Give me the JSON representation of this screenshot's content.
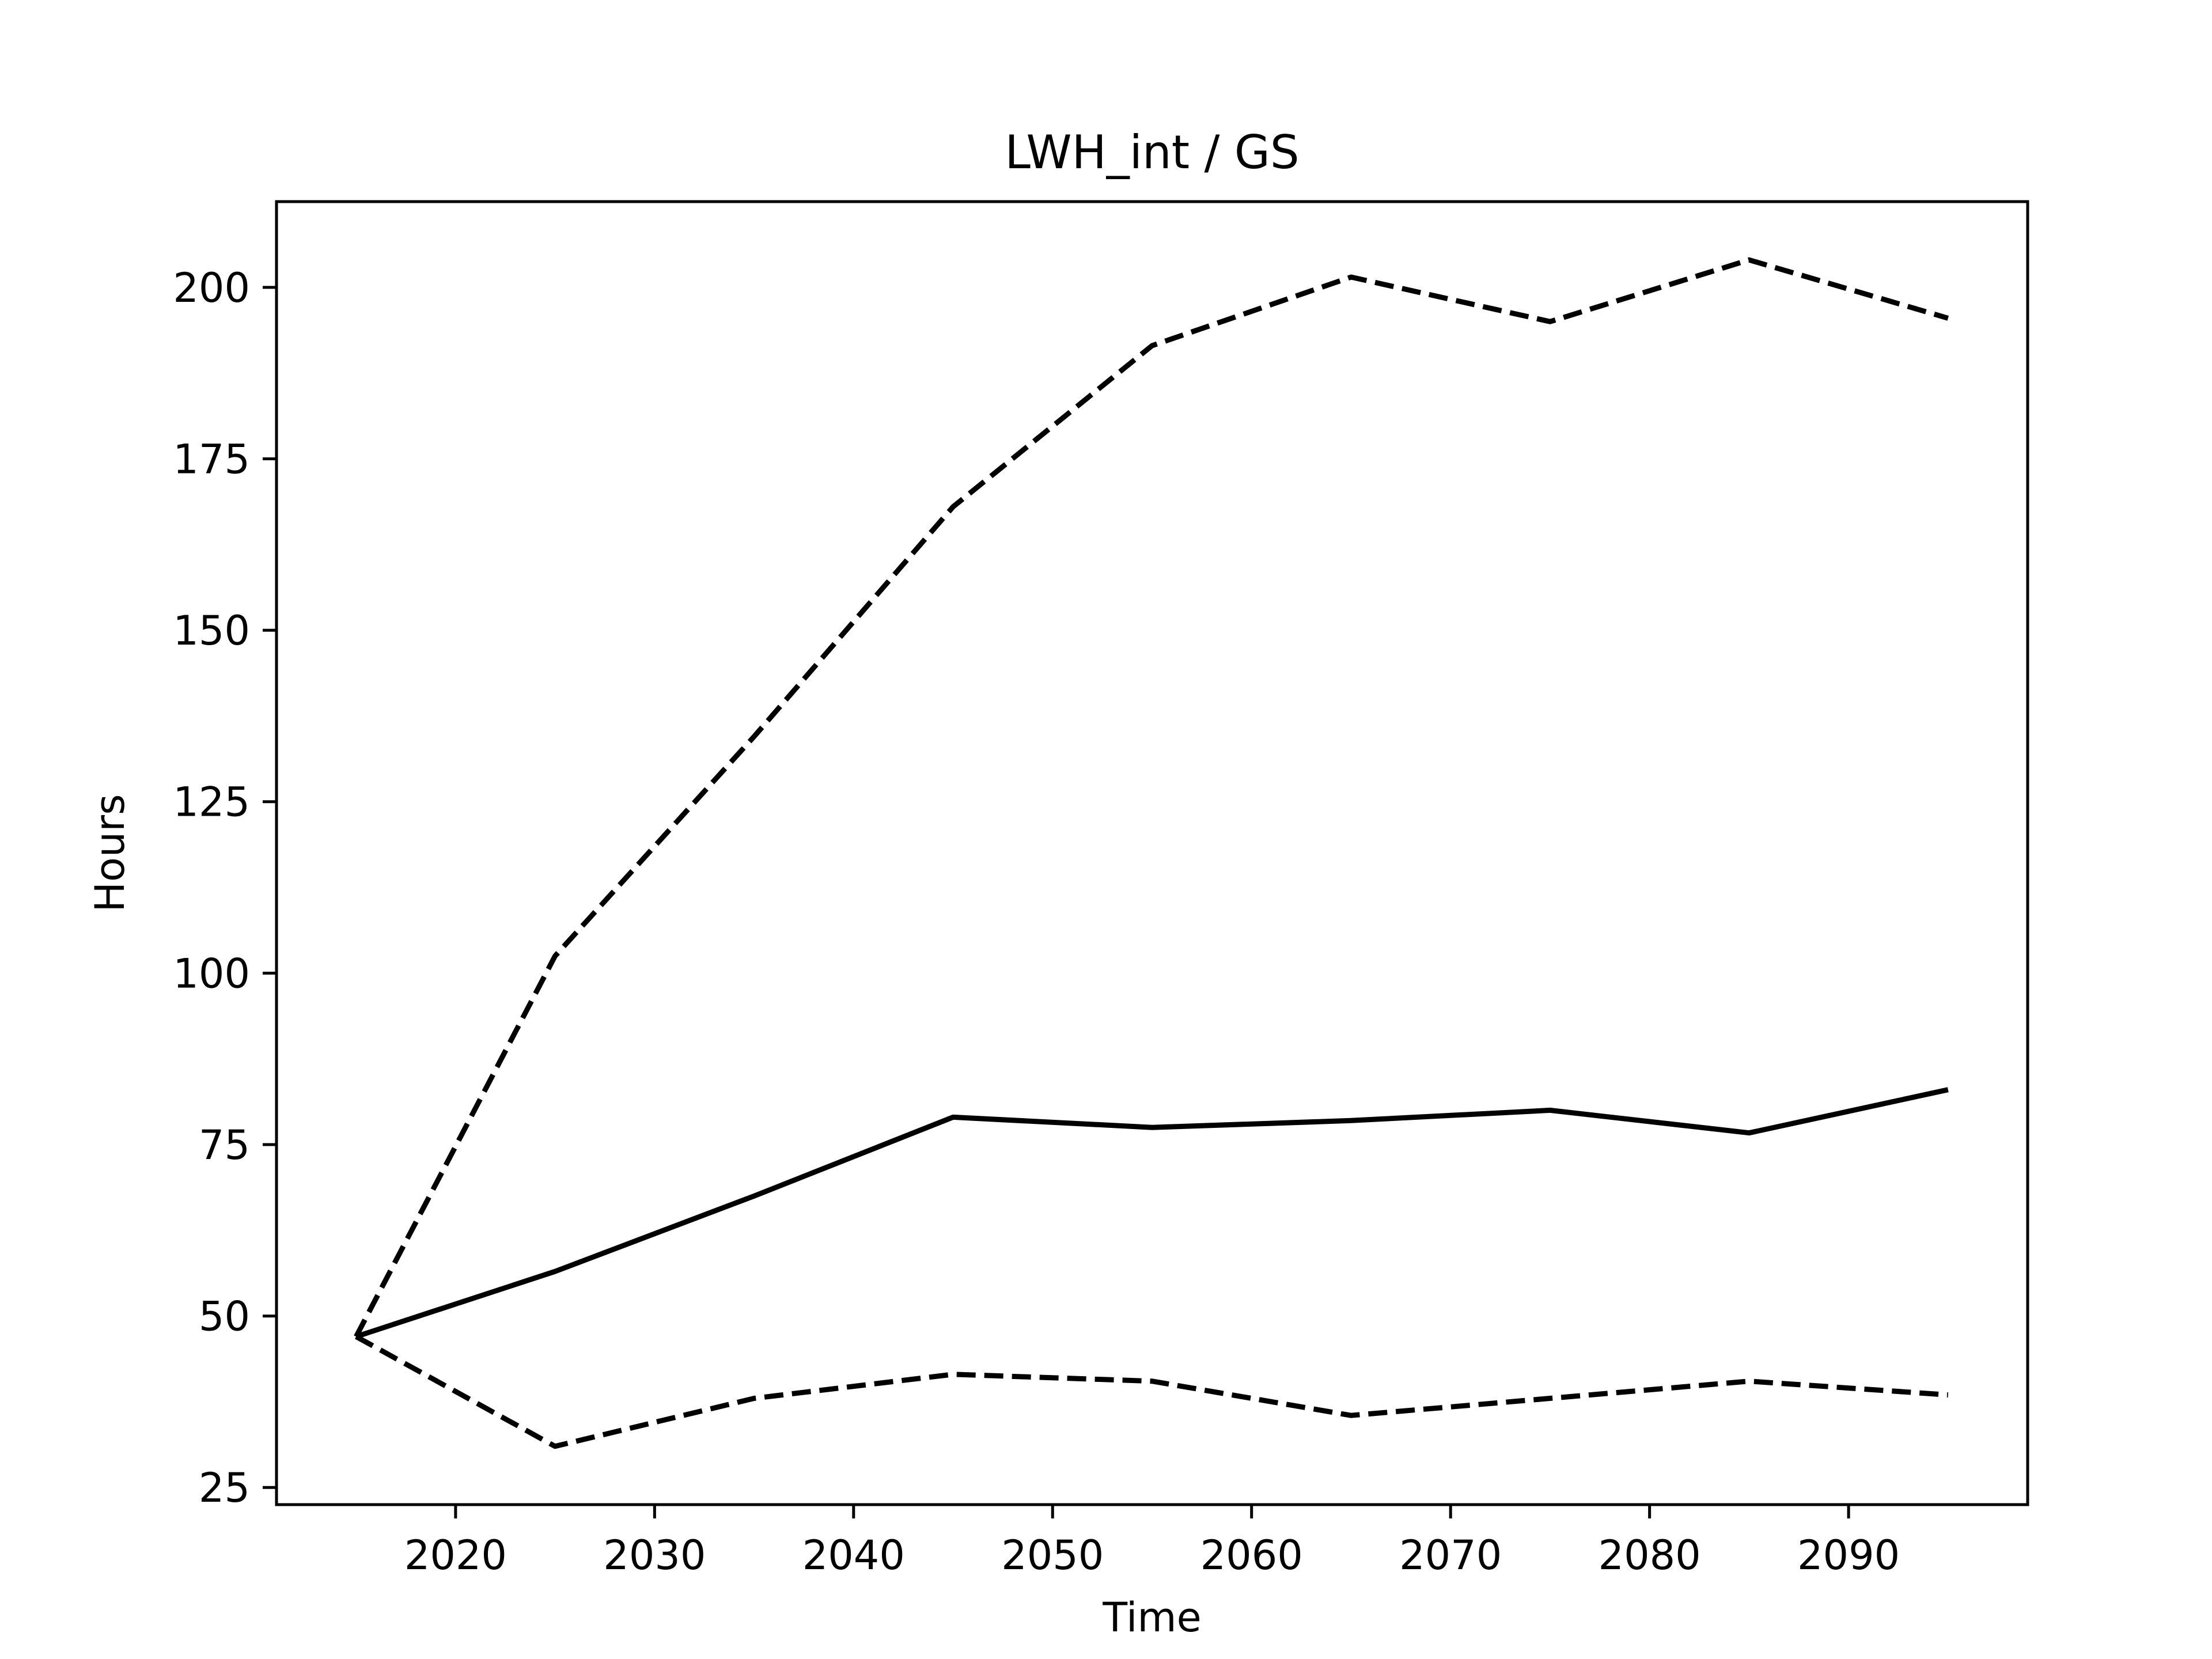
{
  "chart_data": {
    "type": "line",
    "title": "LWH_int / GS",
    "xlabel": "Time",
    "ylabel": "Hours",
    "xlim": [
      2011,
      2099
    ],
    "ylim": [
      22.5,
      212.5
    ],
    "xticks": [
      2020,
      2030,
      2040,
      2050,
      2060,
      2070,
      2080,
      2090
    ],
    "yticks": [
      25,
      50,
      75,
      100,
      125,
      150,
      175,
      200
    ],
    "grid": false,
    "legend": "none",
    "x": [
      2015,
      2025,
      2035,
      2045,
      2055,
      2065,
      2075,
      2085,
      2095
    ],
    "series": [
      {
        "style": "solid",
        "color": "#000000",
        "values": [
          47,
          56.5,
          67.5,
          79,
          77.5,
          78.5,
          80,
          76.7,
          83
        ]
      },
      {
        "style": "dashed",
        "color": "#000000",
        "values": [
          47,
          102.5,
          134.5,
          168,
          191.5,
          201.5,
          195,
          204,
          195.5
        ]
      },
      {
        "style": "dashed",
        "color": "#000000",
        "values": [
          47,
          31,
          38,
          41.5,
          40.5,
          35.5,
          38,
          40.5,
          38.5
        ]
      }
    ]
  }
}
